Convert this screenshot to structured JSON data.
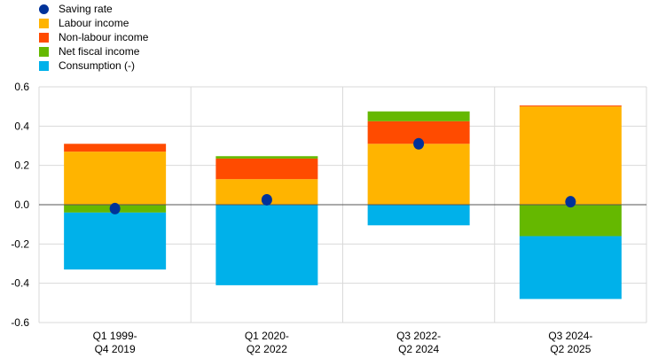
{
  "legend": [
    {
      "label": "Saving rate",
      "color": "#003299",
      "shape": "dot"
    },
    {
      "label": "Labour income",
      "color": "#FFB400",
      "shape": "square"
    },
    {
      "label": "Non-labour income",
      "color": "#FF4B00",
      "shape": "square"
    },
    {
      "label": "Net fiscal income",
      "color": "#65B800",
      "shape": "square"
    },
    {
      "label": "Consumption (-)",
      "color": "#00B1EA",
      "shape": "square"
    }
  ],
  "chart_data": {
    "type": "bar",
    "stacked": true,
    "categories": [
      [
        "Q1 1999-",
        "Q4 2019"
      ],
      [
        "Q1 2020-",
        "Q2 2022"
      ],
      [
        "Q3 2022-",
        "Q2 2024"
      ],
      [
        "Q3 2024-",
        "Q2 2025"
      ]
    ],
    "series": [
      {
        "name": "Labour income",
        "color": "#FFB400",
        "values": [
          0.27,
          0.13,
          0.31,
          0.5
        ]
      },
      {
        "name": "Non-labour income",
        "color": "#FF4B00",
        "values": [
          0.04,
          0.105,
          0.115,
          0.005
        ]
      },
      {
        "name": "Net fiscal income",
        "color": "#65B800",
        "values": [
          -0.04,
          0.012,
          0.05,
          -0.16
        ]
      },
      {
        "name": "Consumption (-)",
        "color": "#00B1EA",
        "values": [
          -0.29,
          -0.41,
          -0.105,
          -0.32
        ]
      }
    ],
    "dots": {
      "name": "Saving rate",
      "color": "#003299",
      "values": [
        -0.02,
        0.025,
        0.31,
        0.015
      ]
    },
    "ylim": [
      -0.6,
      0.6
    ],
    "yticks": [
      "0.6",
      "0.4",
      "0.2",
      "0.0",
      "-0.2",
      "-0.4",
      "-0.6"
    ],
    "grid": true,
    "legend_position": "top-left"
  }
}
